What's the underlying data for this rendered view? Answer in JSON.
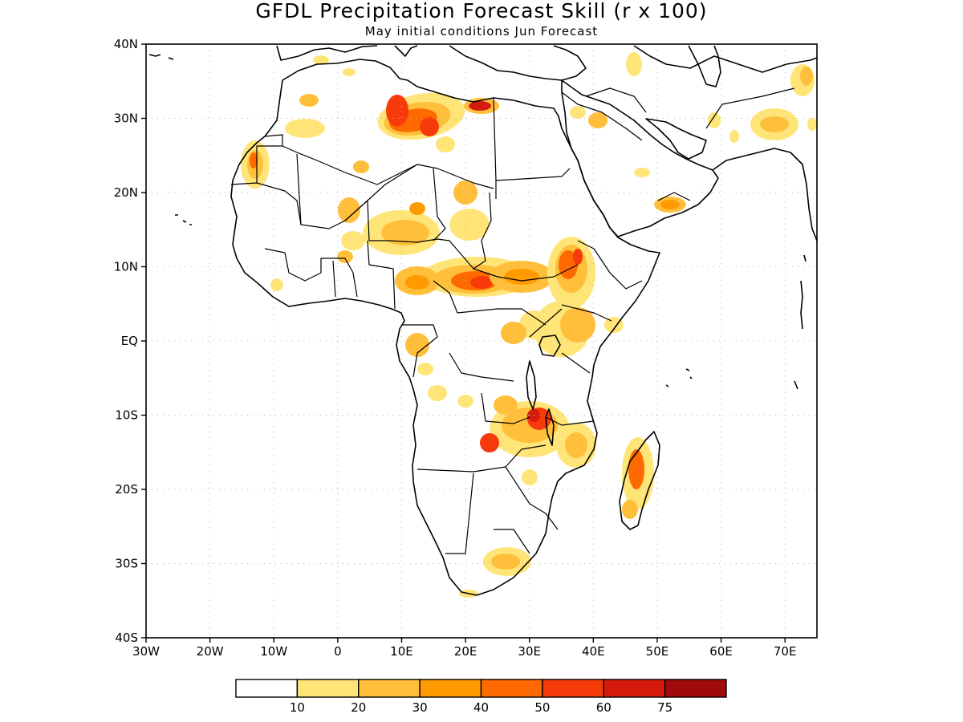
{
  "title": "GFDL Precipitation Forecast Skill (r x 100)",
  "subtitle": "May initial conditions  Jun Forecast",
  "lon_labels": [
    "30W",
    "20W",
    "10W",
    "0",
    "10E",
    "20E",
    "30E",
    "40E",
    "50E",
    "60E",
    "70E"
  ],
  "lat_labels": [
    "40N",
    "30N",
    "20N",
    "10N",
    "EQ",
    "10S",
    "20S",
    "30S",
    "40S"
  ],
  "colorbar": {
    "levels": [
      "10",
      "20",
      "30",
      "40",
      "50",
      "60",
      "75"
    ],
    "colors": [
      "#ffffff",
      "#ffe578",
      "#ffbf3a",
      "#ff9b00",
      "#ff6a00",
      "#f73a0a",
      "#d51c0c",
      "#a00a0a"
    ]
  },
  "map": {
    "lon_range": [
      -30,
      75
    ],
    "lat_range": [
      -40,
      40
    ],
    "grid": "dotted, every 10 degrees",
    "variable": "correlation skill x 100"
  },
  "skill_regions": [
    {
      "name": "Western Sahara / Mauritania coast",
      "level": 3
    },
    {
      "name": "Algeria-Libya (northern Sahara)",
      "level": 5
    },
    {
      "name": "Northeastern Libya",
      "level": 7
    },
    {
      "name": "Niger / Chad",
      "level": 3
    },
    {
      "name": "Central African Republic / South Sudan",
      "level": 5
    },
    {
      "name": "Ethiopian Highlands",
      "level": 4
    },
    {
      "name": "Lake Victoria region",
      "level": 4
    },
    {
      "name": "Zambia / Malawi / Mozambique",
      "level": 5
    },
    {
      "name": "Madagascar",
      "level": 5
    },
    {
      "name": "South Africa interior",
      "level": 3
    },
    {
      "name": "Arabian Peninsula / Oman",
      "level": 3
    },
    {
      "name": "Iran / Pakistan",
      "level": 2
    }
  ]
}
